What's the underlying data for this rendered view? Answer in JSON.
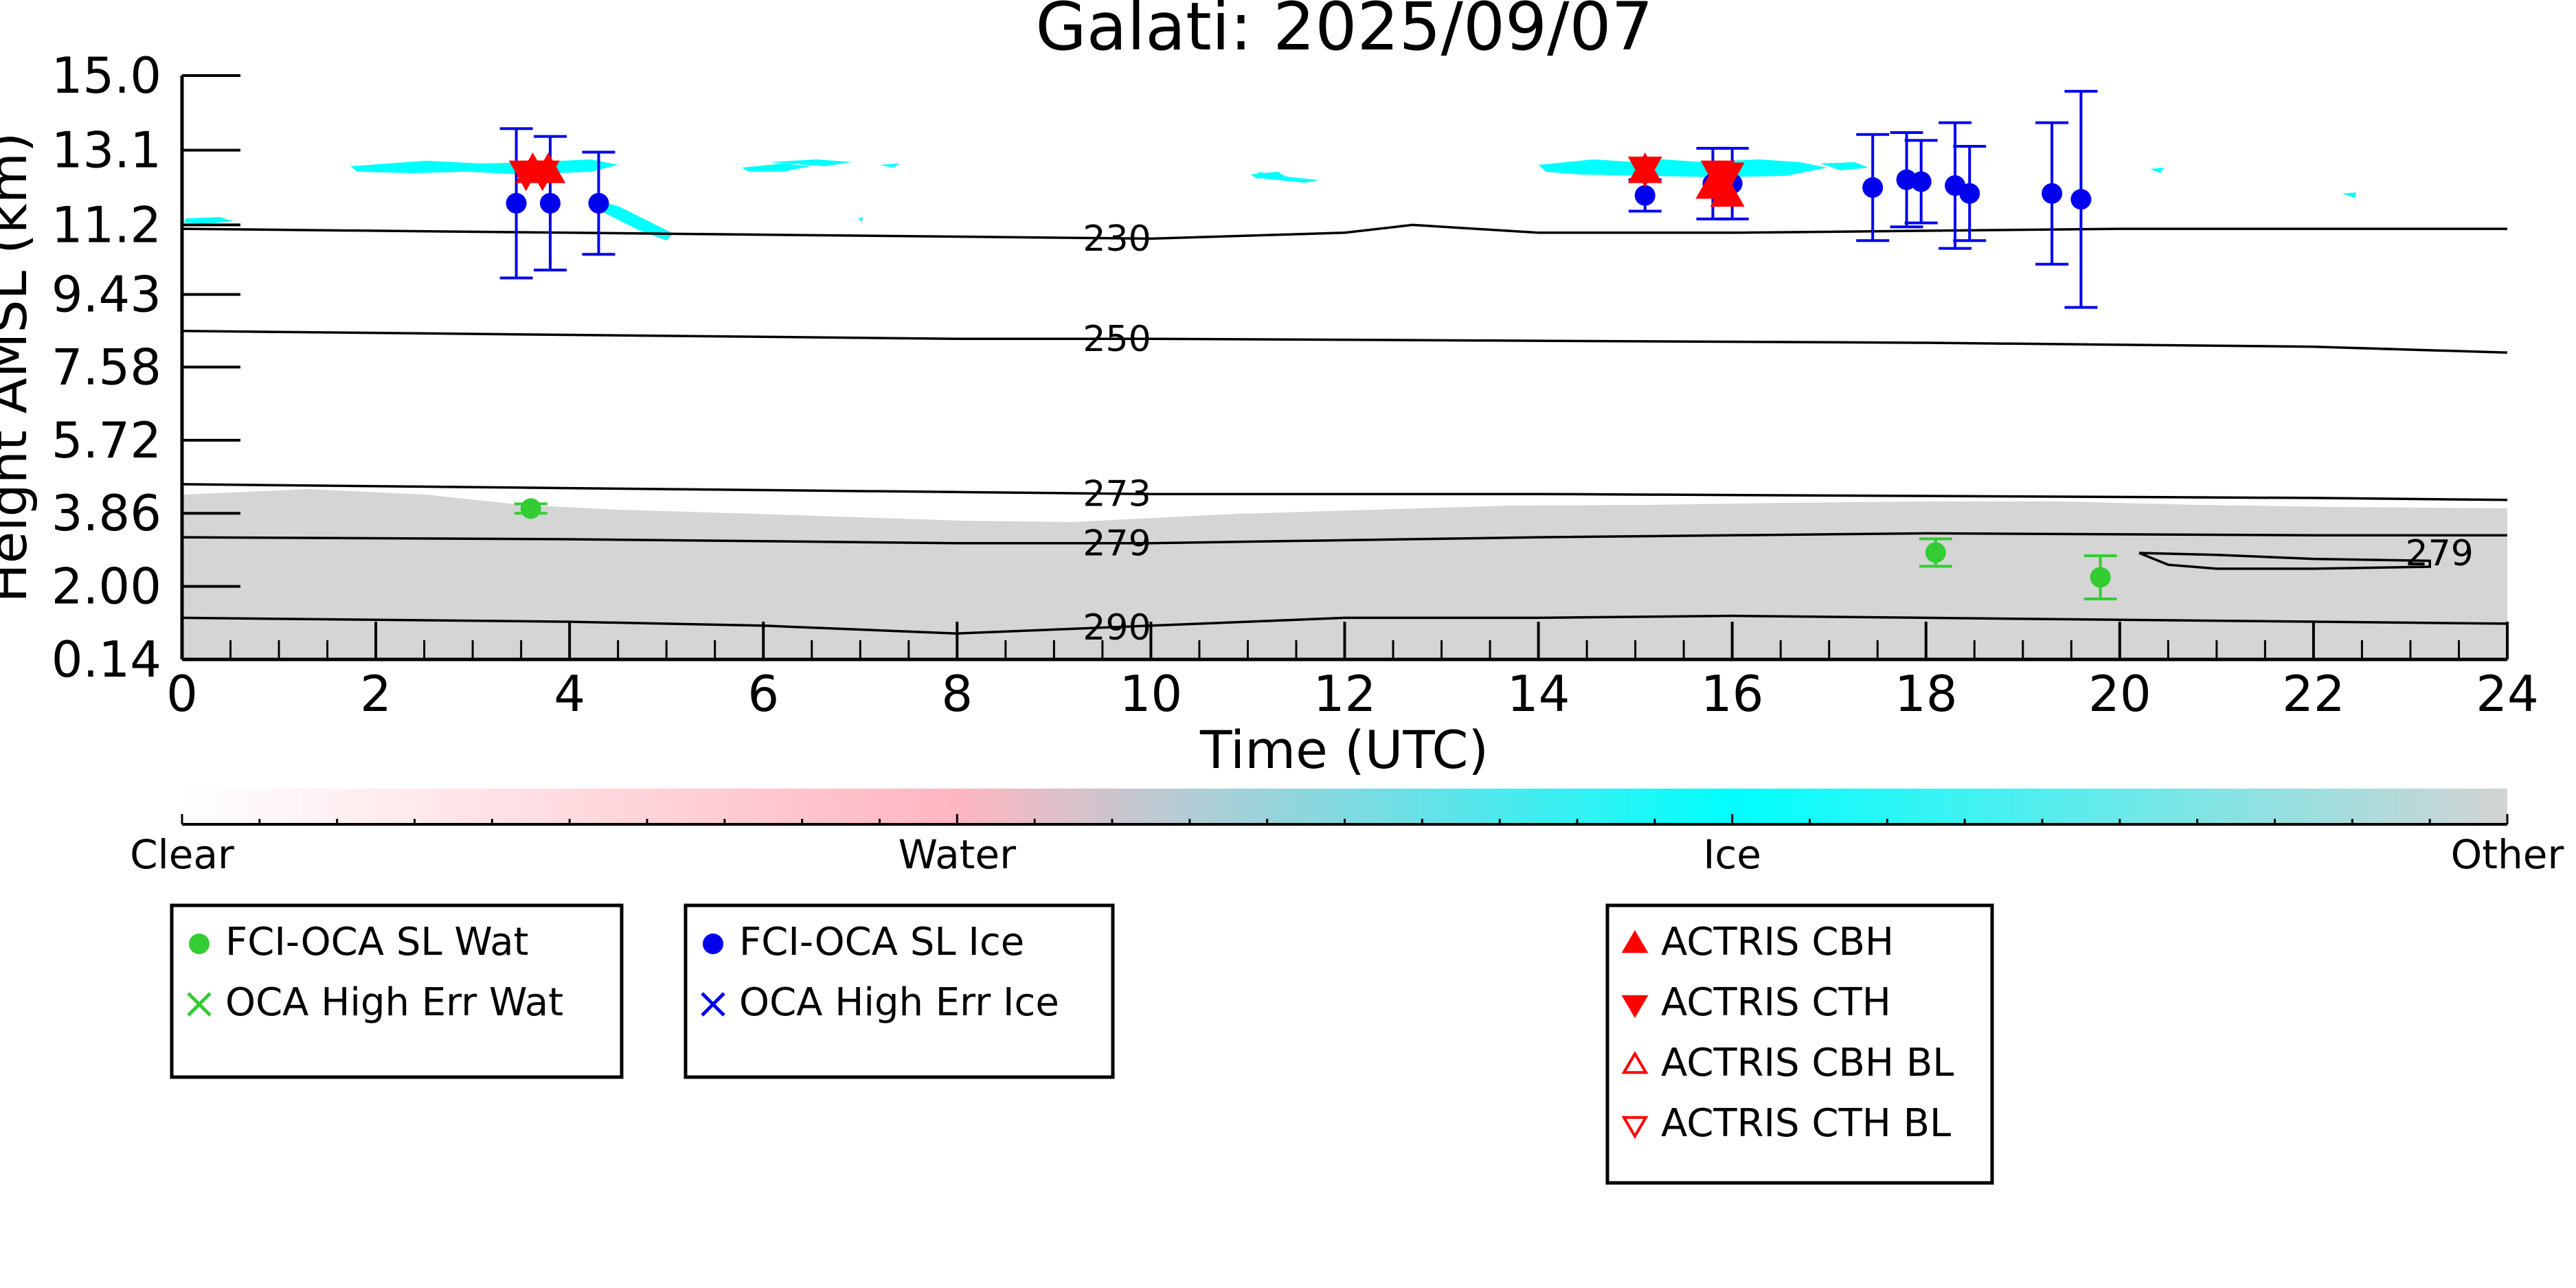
{
  "chart_data": {
    "type": "scatter",
    "title": "Galati: 2025/09/07",
    "xlabel": "Time (UTC)",
    "ylabel": "Height AMSL (km)",
    "xlim": [
      0,
      24
    ],
    "ylim": [
      0.14,
      15.0
    ],
    "x_ticks": [
      "0",
      "2",
      "4",
      "6",
      "8",
      "10",
      "12",
      "14",
      "16",
      "18",
      "20",
      "22",
      "24"
    ],
    "y_ticks": [
      "0.14",
      "2.00",
      "3.86",
      "5.72",
      "7.58",
      "9.43",
      "11.2",
      "13.1",
      "15.0"
    ],
    "colorbar": {
      "labels": [
        "Clear",
        "Water",
        "Ice",
        "Other"
      ],
      "colors": [
        "#ffffff",
        "#ffb6c1",
        "#00ffff",
        "#d3d3d3"
      ]
    },
    "contours": [
      {
        "label": "230",
        "label_x": 9.65,
        "points": [
          [
            0,
            11.1
          ],
          [
            4,
            11.0
          ],
          [
            8,
            10.9
          ],
          [
            10,
            10.85
          ],
          [
            12,
            11.0
          ],
          [
            12.7,
            11.2
          ],
          [
            14,
            11.0
          ],
          [
            16,
            11.0
          ],
          [
            20,
            11.1
          ],
          [
            24,
            11.1
          ]
        ]
      },
      {
        "label": "250",
        "label_x": 9.65,
        "points": [
          [
            0,
            8.5
          ],
          [
            4,
            8.4
          ],
          [
            8,
            8.3
          ],
          [
            10,
            8.3
          ],
          [
            14,
            8.25
          ],
          [
            18,
            8.2
          ],
          [
            22,
            8.1
          ],
          [
            24,
            7.95
          ]
        ]
      },
      {
        "label": "273",
        "label_x": 9.65,
        "points": [
          [
            0,
            4.6
          ],
          [
            4,
            4.5
          ],
          [
            8,
            4.4
          ],
          [
            10,
            4.35
          ],
          [
            14,
            4.35
          ],
          [
            18,
            4.3
          ],
          [
            22,
            4.25
          ],
          [
            24,
            4.2
          ]
        ]
      },
      {
        "label": "279",
        "label_x": 9.65,
        "points": [
          [
            0,
            3.25
          ],
          [
            4,
            3.2
          ],
          [
            8,
            3.1
          ],
          [
            10,
            3.1
          ],
          [
            14,
            3.25
          ],
          [
            18,
            3.35
          ],
          [
            22,
            3.3
          ],
          [
            24,
            3.3
          ]
        ]
      },
      {
        "label": "279",
        "label_x": 23.3,
        "points": [
          [
            20.2,
            2.85
          ],
          [
            21,
            2.8
          ],
          [
            22,
            2.7
          ],
          [
            23.2,
            2.65
          ],
          [
            23.2,
            2.5
          ],
          [
            22,
            2.45
          ],
          [
            21,
            2.45
          ],
          [
            20.5,
            2.55
          ],
          [
            20.2,
            2.85
          ]
        ]
      },
      {
        "label": "290",
        "label_x": 9.65,
        "points": [
          [
            0,
            1.2
          ],
          [
            4,
            1.1
          ],
          [
            6,
            1.0
          ],
          [
            8,
            0.8
          ],
          [
            10,
            1.0
          ],
          [
            12,
            1.2
          ],
          [
            14,
            1.2
          ],
          [
            16,
            1.25
          ],
          [
            18,
            1.2
          ],
          [
            20,
            1.15
          ],
          [
            24,
            1.05
          ]
        ]
      }
    ],
    "series": [
      {
        "name": "FCI-OCA SL Wat",
        "color": "#33cc33",
        "marker": "circle",
        "points": [
          {
            "x": 3.6,
            "y": 3.98,
            "err": 0.12
          },
          {
            "x": 18.1,
            "y": 2.86,
            "err": 0.35
          },
          {
            "x": 19.8,
            "y": 2.23,
            "err": 0.55
          }
        ]
      },
      {
        "name": "OCA High Err Wat",
        "color": "#33cc33",
        "marker": "x",
        "points": []
      },
      {
        "name": "FCI-OCA SL Ice",
        "color": "#0000ee",
        "marker": "circle",
        "points": [
          {
            "x": 3.45,
            "y": 11.75,
            "err": 1.9
          },
          {
            "x": 3.8,
            "y": 11.75,
            "err": 1.7
          },
          {
            "x": 4.3,
            "y": 11.75,
            "err": 1.3
          },
          {
            "x": 15.1,
            "y": 11.95,
            "err": 0.4
          },
          {
            "x": 15.8,
            "y": 12.25,
            "err": 0.9
          },
          {
            "x": 16.0,
            "y": 12.25,
            "err": 0.9
          },
          {
            "x": 17.45,
            "y": 12.15,
            "err": 1.35
          },
          {
            "x": 17.8,
            "y": 12.35,
            "err": 1.2
          },
          {
            "x": 17.95,
            "y": 12.3,
            "err": 1.05
          },
          {
            "x": 18.3,
            "y": 12.2,
            "err": 1.6
          },
          {
            "x": 18.45,
            "y": 12.0,
            "err": 1.2
          },
          {
            "x": 19.3,
            "y": 12.0,
            "err": 1.8
          },
          {
            "x": 19.6,
            "y": 11.85,
            "err": 2.75
          }
        ]
      },
      {
        "name": "OCA High Err Ice",
        "color": "#0000ee",
        "marker": "x",
        "points": []
      },
      {
        "name": "ACTRIS CBH",
        "color": "#ff0000",
        "marker": "triangle-up",
        "points": [
          {
            "x": 3.62,
            "y": 12.55
          },
          {
            "x": 3.78,
            "y": 12.55
          },
          {
            "x": 15.1,
            "y": 12.55
          },
          {
            "x": 15.8,
            "y": 12.15
          },
          {
            "x": 15.95,
            "y": 11.95
          }
        ]
      },
      {
        "name": "ACTRIS CTH",
        "color": "#ff0000",
        "marker": "triangle-down",
        "points": [
          {
            "x": 3.55,
            "y": 12.55
          },
          {
            "x": 3.72,
            "y": 12.55
          },
          {
            "x": 15.1,
            "y": 12.65
          },
          {
            "x": 15.85,
            "y": 12.55
          },
          {
            "x": 15.95,
            "y": 12.5
          }
        ]
      },
      {
        "name": "ACTRIS CBH BL",
        "color": "#ff0000",
        "marker": "triangle-up-open",
        "points": []
      },
      {
        "name": "ACTRIS CTH BL",
        "color": "#ff0000",
        "marker": "triangle-down-open",
        "points": []
      }
    ],
    "legend_groups": [
      [
        "FCI-OCA SL Wat",
        "OCA High Err Wat"
      ],
      [
        "FCI-OCA SL Ice",
        "OCA High Err Ice"
      ],
      [
        "ACTRIS CBH",
        "ACTRIS CTH",
        "ACTRIS CBH BL",
        "ACTRIS CTH BL"
      ]
    ],
    "grid": false
  }
}
